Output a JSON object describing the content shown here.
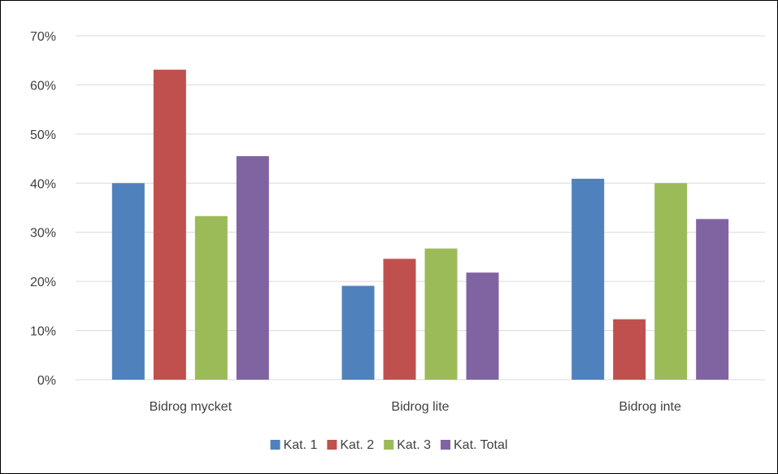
{
  "chart_data": {
    "type": "bar",
    "categories": [
      "Bidrog mycket",
      "Bidrog lite",
      "Bidrog inte"
    ],
    "series": [
      {
        "name": "Kat. 1",
        "color": "#4F81BD",
        "values": [
          40.0,
          19.1,
          40.9
        ]
      },
      {
        "name": "Kat. 2",
        "color": "#C0504D",
        "values": [
          63.1,
          24.6,
          12.3
        ]
      },
      {
        "name": "Kat. 3",
        "color": "#9BBB59",
        "values": [
          33.3,
          26.7,
          40.0
        ]
      },
      {
        "name": "Kat. Total",
        "color": "#8064A2",
        "values": [
          45.5,
          21.8,
          32.7
        ]
      }
    ],
    "ylim": [
      0,
      70
    ],
    "yticks": [
      0,
      10,
      20,
      30,
      40,
      50,
      60,
      70
    ],
    "ytick_labels": [
      "0%",
      "10%",
      "20%",
      "30%",
      "40%",
      "50%",
      "60%",
      "70%"
    ],
    "grid": true,
    "legend_position": "bottom"
  }
}
